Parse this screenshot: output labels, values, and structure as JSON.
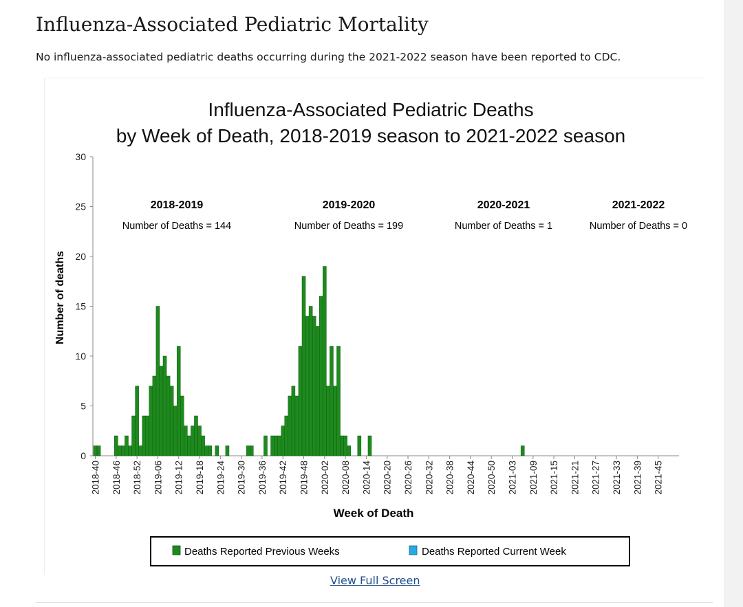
{
  "page": {
    "title": "Influenza-Associated Pediatric Mortality",
    "note": "No influenza-associated pediatric deaths occurring during the 2021-2022 season have been reported to CDC.",
    "fullscreen_label": "View Full Screen"
  },
  "colors": {
    "previous": "#1e8a1e",
    "current": "#27aae1",
    "axis": "#888888"
  },
  "chart_data": {
    "type": "bar",
    "title_line1": "Influenza-Associated Pediatric Deaths",
    "title_line2": "by Week of Death, 2018-2019 season to 2021-2022 season",
    "xlabel": "Week of Death",
    "ylabel": "Number of deaths",
    "ylim": [
      0,
      30
    ],
    "yticks": [
      "0",
      "5",
      "10",
      "15",
      "20",
      "25",
      "30"
    ],
    "start_week": "2018-40",
    "tick_labels": [
      "2018-40",
      "2018-46",
      "2018-52",
      "2019-06",
      "2019-12",
      "2019-18",
      "2019-24",
      "2019-30",
      "2019-36",
      "2019-42",
      "2019-48",
      "2020-02",
      "2020-08",
      "2020-14",
      "2020-20",
      "2020-26",
      "2020-32",
      "2020-38",
      "2020-44",
      "2020-50",
      "2021-03",
      "2021-09",
      "2021-15",
      "2021-21",
      "2021-27",
      "2021-33",
      "2021-39",
      "2021-45"
    ],
    "seasons": [
      {
        "label": "2018-2019",
        "count_text": "Number of Deaths = 144"
      },
      {
        "label": "2019-2020",
        "count_text": "Number of Deaths = 199"
      },
      {
        "label": "2020-2021",
        "count_text": "Number of Deaths = 1"
      },
      {
        "label": "2021-2022",
        "count_text": "Number of Deaths = 0"
      }
    ],
    "series": [
      {
        "name": "Deaths Reported Previous Weeks",
        "values": [
          1,
          1,
          0,
          0,
          0,
          0,
          2,
          1,
          1,
          2,
          1,
          4,
          7,
          1,
          4,
          4,
          7,
          8,
          15,
          9,
          10,
          8,
          7,
          5,
          11,
          6,
          3,
          2,
          3,
          4,
          3,
          2,
          1,
          1,
          0,
          1,
          0,
          0,
          1,
          0,
          0,
          0,
          0,
          0,
          1,
          1,
          0,
          0,
          0,
          2,
          0,
          2,
          2,
          2,
          3,
          4,
          6,
          7,
          6,
          11,
          18,
          14,
          15,
          14,
          13,
          16,
          19,
          7,
          11,
          7,
          11,
          2,
          2,
          1,
          0,
          0,
          2,
          0,
          0,
          2,
          0,
          0,
          0,
          0,
          0,
          0,
          0,
          0,
          0,
          0,
          0,
          0,
          0,
          0,
          0,
          0,
          0,
          0,
          0,
          0,
          0,
          0,
          0,
          0,
          0,
          0,
          0,
          0,
          0,
          0,
          0,
          0,
          0,
          0,
          0,
          0,
          0,
          0,
          0,
          0,
          0,
          0,
          0,
          1,
          0,
          0,
          0,
          0,
          0,
          0,
          0,
          0,
          0,
          0,
          0,
          0,
          0,
          0,
          0,
          0,
          0,
          0,
          0,
          0,
          0,
          0,
          0,
          0,
          0,
          0,
          0,
          0,
          0,
          0,
          0,
          0,
          0,
          0,
          0,
          0,
          0,
          0,
          0,
          0,
          0,
          0,
          0,
          0,
          0,
          0,
          0,
          0,
          0
        ]
      },
      {
        "name": "Deaths Reported Current Week",
        "values": []
      }
    ],
    "legend": [
      "Deaths Reported Previous Weeks",
      "Deaths Reported Current Week"
    ]
  }
}
